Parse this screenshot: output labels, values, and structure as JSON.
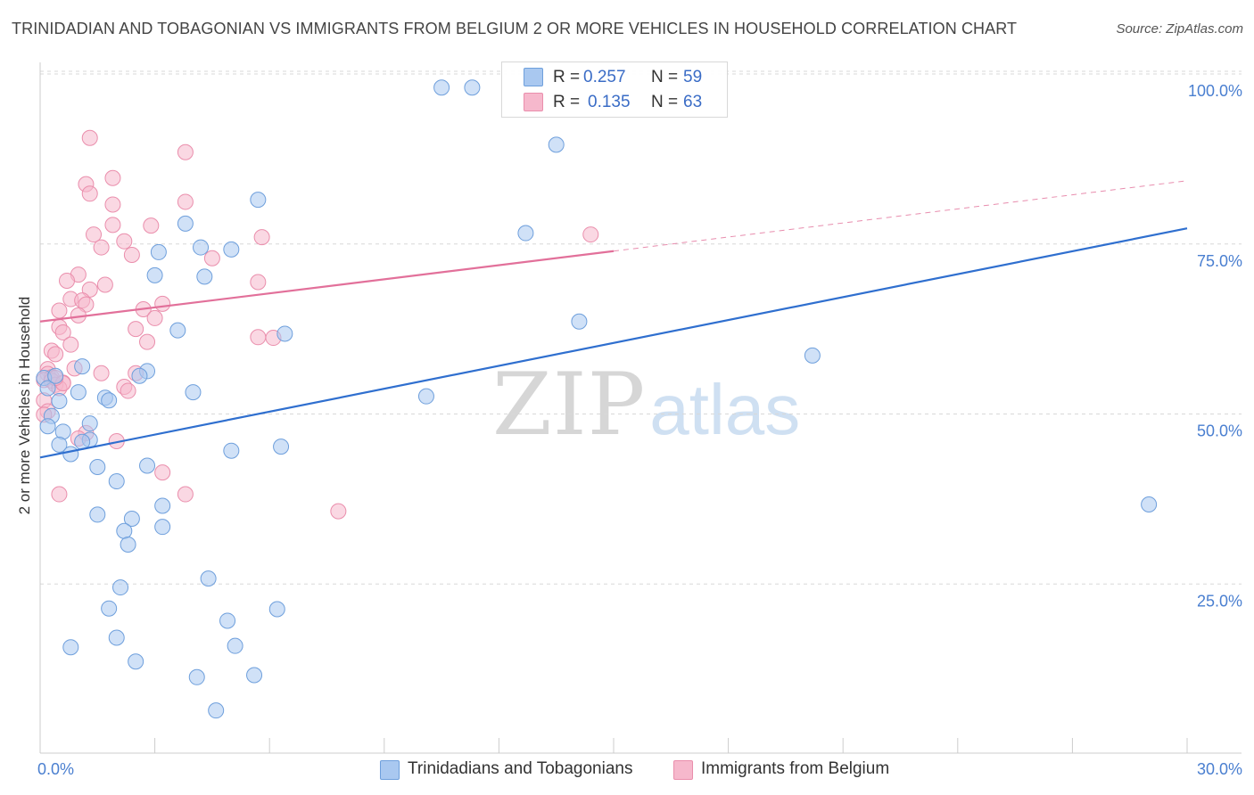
{
  "title": "TRINIDADIAN AND TOBAGONIAN VS IMMIGRANTS FROM BELGIUM 2 OR MORE VEHICLES IN HOUSEHOLD CORRELATION CHART",
  "source": "Source: ZipAtlas.com",
  "watermark": {
    "zip": "ZIP",
    "atlas": "atlas"
  },
  "legend": {
    "r_label": "R =",
    "n_label": "N =",
    "series1": {
      "r": "0.257",
      "n": "59"
    },
    "series2": {
      "r": "0.135",
      "n": "63"
    }
  },
  "colors": {
    "blue_fill": "#a9c8f0",
    "blue_stroke": "#6e9fdc",
    "blue_line": "#2f6fcf",
    "pink_fill": "#f6b8cc",
    "pink_stroke": "#ea8eac",
    "pink_line": "#e2709a",
    "tick_text": "#4a7fd0",
    "grid": "#d8d8d8"
  },
  "chart_data": {
    "type": "scatter",
    "title": "TRINIDADIAN AND TOBAGONIAN VS IMMIGRANTS FROM BELGIUM 2 OR MORE VEHICLES IN HOUSEHOLD CORRELATION CHART",
    "xlabel": "",
    "ylabel": "2 or more Vehicles in Household",
    "xlim": [
      0,
      30
    ],
    "ylim": [
      0,
      103
    ],
    "x_tick_labels": [
      "0.0%",
      "30.0%"
    ],
    "y_ticks": [
      25,
      50,
      75,
      100
    ],
    "y_tick_labels": [
      "25.0%",
      "50.0%",
      "75.0%",
      "100.0%"
    ],
    "grid": true,
    "legend_position": "top-center",
    "series": [
      {
        "name": "Trinidadians and Tobagonians",
        "color": "#a9c8f0",
        "r": 0.257,
        "n": 59,
        "trend": {
          "x": [
            0,
            30
          ],
          "y": [
            43.6,
            77.3
          ],
          "dashed_from_x": null
        },
        "points": [
          [
            10.5,
            98.0
          ],
          [
            11.3,
            98.0
          ],
          [
            13.5,
            89.6
          ],
          [
            5.7,
            81.5
          ],
          [
            3.8,
            78.0
          ],
          [
            4.2,
            74.5
          ],
          [
            5.0,
            74.2
          ],
          [
            3.1,
            73.8
          ],
          [
            12.7,
            76.6
          ],
          [
            3.0,
            70.4
          ],
          [
            4.3,
            70.2
          ],
          [
            14.1,
            63.6
          ],
          [
            6.4,
            61.8
          ],
          [
            3.6,
            62.3
          ],
          [
            20.2,
            58.6
          ],
          [
            1.1,
            57.0
          ],
          [
            2.8,
            56.3
          ],
          [
            2.6,
            55.6
          ],
          [
            0.1,
            55.3
          ],
          [
            0.2,
            53.8
          ],
          [
            1.0,
            53.2
          ],
          [
            4.0,
            53.2
          ],
          [
            10.1,
            52.6
          ],
          [
            1.7,
            52.4
          ],
          [
            1.8,
            52.0
          ],
          [
            0.5,
            51.9
          ],
          [
            0.3,
            49.7
          ],
          [
            1.3,
            48.6
          ],
          [
            0.2,
            48.2
          ],
          [
            0.6,
            47.4
          ],
          [
            1.3,
            46.2
          ],
          [
            1.1,
            45.9
          ],
          [
            0.5,
            45.5
          ],
          [
            6.3,
            45.2
          ],
          [
            5.0,
            44.6
          ],
          [
            0.8,
            44.1
          ],
          [
            1.5,
            42.2
          ],
          [
            2.8,
            42.4
          ],
          [
            2.0,
            40.1
          ],
          [
            3.2,
            36.5
          ],
          [
            1.5,
            35.2
          ],
          [
            2.4,
            34.6
          ],
          [
            3.2,
            33.4
          ],
          [
            2.2,
            32.8
          ],
          [
            2.3,
            30.8
          ],
          [
            29.0,
            36.7
          ],
          [
            4.4,
            25.8
          ],
          [
            2.1,
            24.5
          ],
          [
            6.2,
            21.3
          ],
          [
            1.8,
            21.4
          ],
          [
            4.9,
            19.6
          ],
          [
            2.0,
            17.1
          ],
          [
            0.8,
            15.7
          ],
          [
            5.1,
            15.9
          ],
          [
            2.5,
            13.6
          ],
          [
            5.6,
            11.6
          ],
          [
            4.1,
            11.3
          ],
          [
            4.6,
            6.4
          ],
          [
            0.4,
            55.6
          ]
        ]
      },
      {
        "name": "Immigrants from Belgium",
        "color": "#f6b8cc",
        "r": 0.135,
        "n": 63,
        "trend": {
          "x": [
            0,
            30
          ],
          "y": [
            63.6,
            84.3
          ],
          "dashed_from_x": 15.0
        },
        "points": [
          [
            1.3,
            90.6
          ],
          [
            3.8,
            88.5
          ],
          [
            1.9,
            84.7
          ],
          [
            1.2,
            83.8
          ],
          [
            1.3,
            82.4
          ],
          [
            3.8,
            81.2
          ],
          [
            1.9,
            80.8
          ],
          [
            1.9,
            77.8
          ],
          [
            2.9,
            77.7
          ],
          [
            1.4,
            76.4
          ],
          [
            5.8,
            76.0
          ],
          [
            14.4,
            76.4
          ],
          [
            2.2,
            75.4
          ],
          [
            1.6,
            74.5
          ],
          [
            2.4,
            73.4
          ],
          [
            4.5,
            72.9
          ],
          [
            1.0,
            70.5
          ],
          [
            0.7,
            69.6
          ],
          [
            1.7,
            69.0
          ],
          [
            5.7,
            69.4
          ],
          [
            1.3,
            68.3
          ],
          [
            0.8,
            66.9
          ],
          [
            1.1,
            66.7
          ],
          [
            1.2,
            66.1
          ],
          [
            3.2,
            66.2
          ],
          [
            0.5,
            65.2
          ],
          [
            2.7,
            65.4
          ],
          [
            1.0,
            64.5
          ],
          [
            3.0,
            64.1
          ],
          [
            0.5,
            62.8
          ],
          [
            0.6,
            62.0
          ],
          [
            2.5,
            62.5
          ],
          [
            5.7,
            61.3
          ],
          [
            6.1,
            61.2
          ],
          [
            0.8,
            60.2
          ],
          [
            2.8,
            60.6
          ],
          [
            0.3,
            59.3
          ],
          [
            0.4,
            58.8
          ],
          [
            0.9,
            56.7
          ],
          [
            0.2,
            56.6
          ],
          [
            0.2,
            55.9
          ],
          [
            0.3,
            55.4
          ],
          [
            0.1,
            55.0
          ],
          [
            1.6,
            56.0
          ],
          [
            2.5,
            56.0
          ],
          [
            0.3,
            54.9
          ],
          [
            0.6,
            54.6
          ],
          [
            0.4,
            54.3
          ],
          [
            0.5,
            53.8
          ],
          [
            2.2,
            54.0
          ],
          [
            0.1,
            52.0
          ],
          [
            2.3,
            53.4
          ],
          [
            0.2,
            50.4
          ],
          [
            0.1,
            49.9
          ],
          [
            1.2,
            47.2
          ],
          [
            1.0,
            46.4
          ],
          [
            2.0,
            46.0
          ],
          [
            3.2,
            41.4
          ],
          [
            3.8,
            38.2
          ],
          [
            0.5,
            38.2
          ],
          [
            7.8,
            35.7
          ],
          [
            0.6,
            54.5
          ],
          [
            0.4,
            55.3
          ]
        ]
      }
    ]
  }
}
